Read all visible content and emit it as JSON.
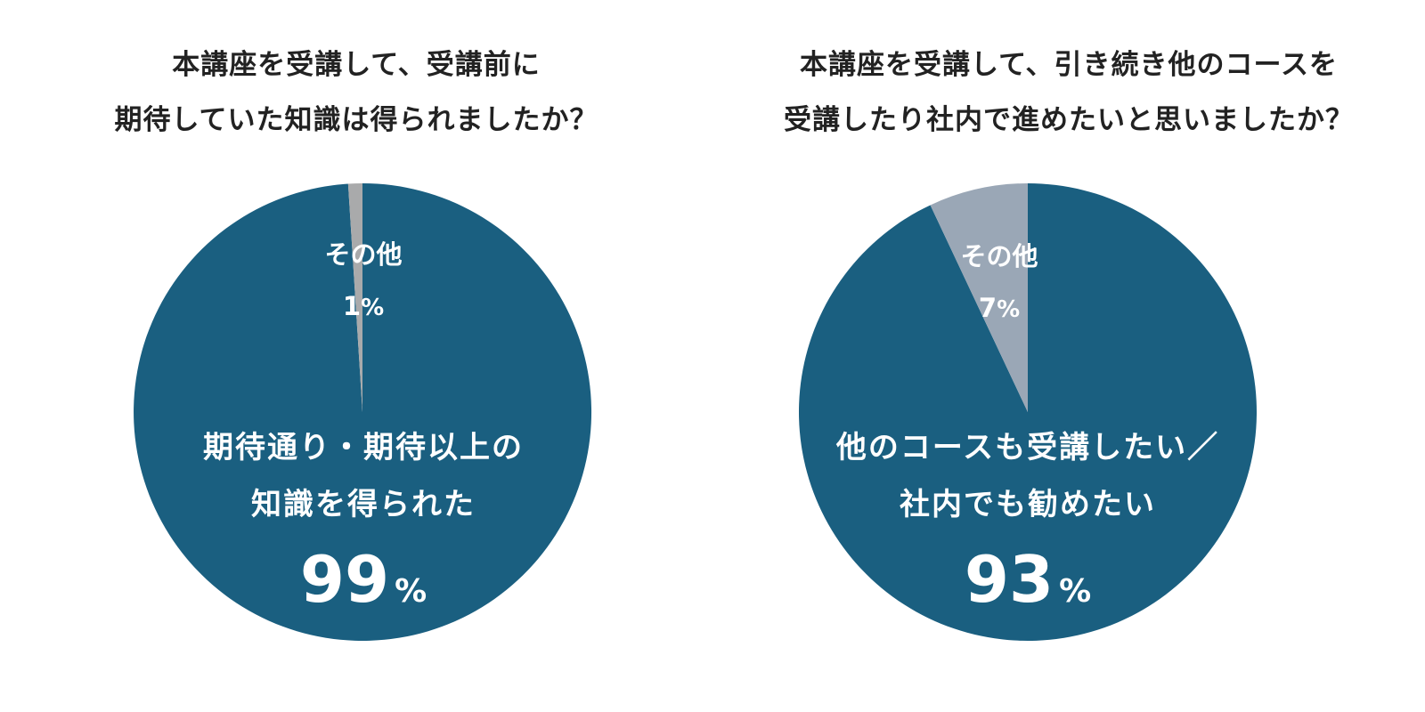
{
  "colors": {
    "main": "#1a5f80",
    "other_left": "#a9aaab",
    "other_right": "#9aa7b6",
    "text": "#222222"
  },
  "chart_data": [
    {
      "type": "pie",
      "title_lines": [
        "本講座を受講して、受講前に",
        "期待していた知識は得られましたか？"
      ],
      "slices": [
        {
          "label_lines": [
            "期待通り・期待以上の",
            "知識を得られた"
          ],
          "value": 99,
          "value_text": "99",
          "pct": "%"
        },
        {
          "label_lines": [
            "その他"
          ],
          "value": 1,
          "value_text": "1",
          "pct": "%"
        }
      ]
    },
    {
      "type": "pie",
      "title_lines": [
        "本講座を受講して、引き続き他のコースを",
        "受講したり社内で進めたいと思いましたか？"
      ],
      "slices": [
        {
          "label_lines": [
            "他のコースも受講したい／",
            "社内でも勧めたい"
          ],
          "value": 93,
          "value_text": "93",
          "pct": "%"
        },
        {
          "label_lines": [
            "その他"
          ],
          "value": 7,
          "value_text": "7",
          "pct": "%"
        }
      ]
    }
  ]
}
